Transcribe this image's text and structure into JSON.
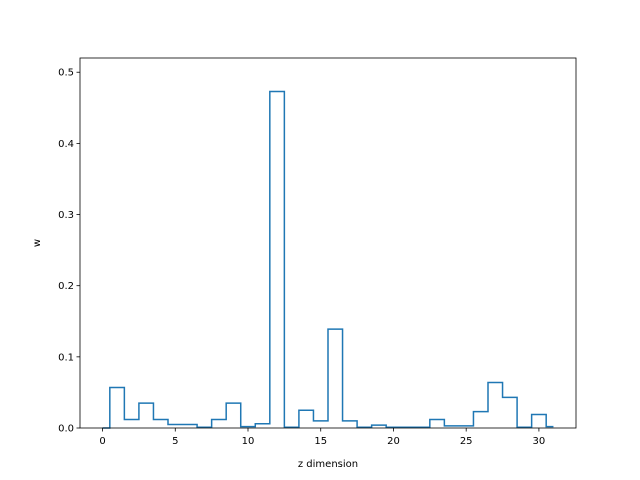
{
  "chart_data": {
    "type": "line",
    "drawstyle": "steps-mid",
    "xlabel": "z dimension",
    "ylabel": "w",
    "xlim": [
      -1.55,
      32.55
    ],
    "ylim": [
      0,
      0.52
    ],
    "xticks": [
      0,
      5,
      10,
      15,
      20,
      25,
      30
    ],
    "yticks": [
      0.0,
      0.1,
      0.2,
      0.3,
      0.4,
      0.5
    ],
    "xtick_labels": [
      "0",
      "5",
      "10",
      "15",
      "20",
      "25",
      "30"
    ],
    "ytick_labels": [
      "0.0",
      "0.1",
      "0.2",
      "0.3",
      "0.4",
      "0.5"
    ],
    "grid": false,
    "color": "#1f77b4",
    "series": [
      {
        "x": [
          0,
          1,
          2,
          3,
          4,
          5,
          6,
          7,
          8,
          9,
          10,
          11,
          12,
          13,
          14,
          15,
          16,
          17,
          18,
          19,
          20,
          21,
          22,
          23,
          24,
          25,
          26,
          27,
          28,
          29,
          30,
          31
        ],
        "values": [
          0.0,
          0.057,
          0.012,
          0.035,
          0.012,
          0.005,
          0.005,
          0.001,
          0.012,
          0.035,
          0.002,
          0.006,
          0.473,
          0.001,
          0.025,
          0.01,
          0.139,
          0.01,
          0.001,
          0.004,
          0.001,
          0.001,
          0.001,
          0.012,
          0.003,
          0.003,
          0.023,
          0.064,
          0.043,
          0.001,
          0.019,
          0.002
        ]
      }
    ]
  }
}
